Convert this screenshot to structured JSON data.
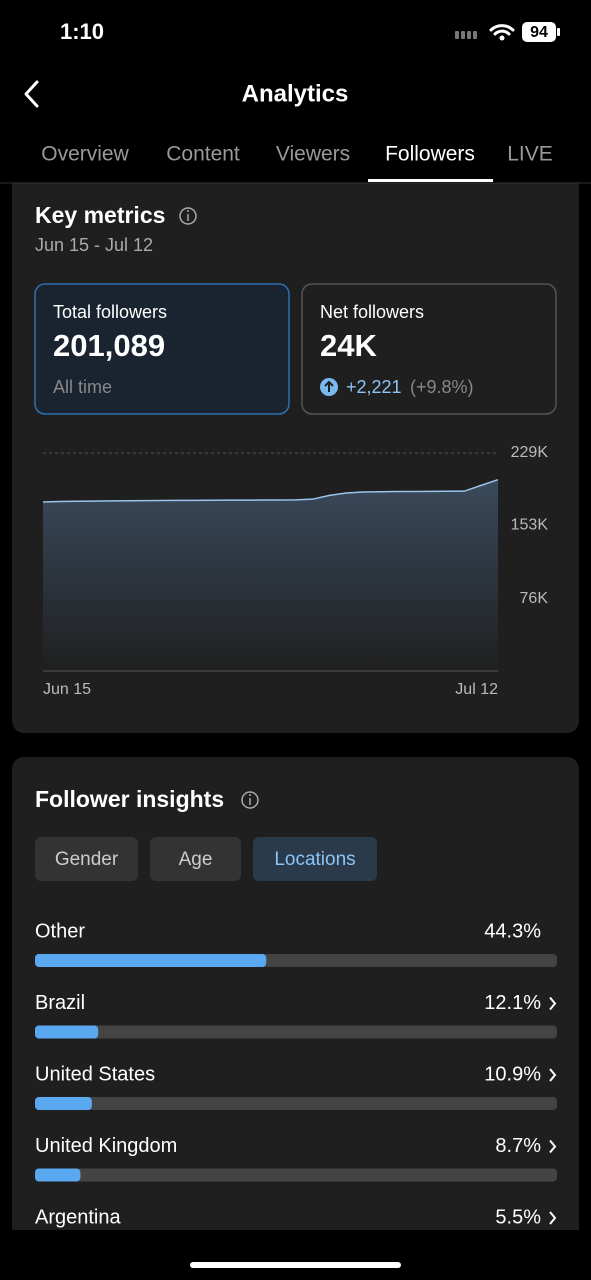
{
  "status_bar": {
    "time": "1:10",
    "battery": "94"
  },
  "header": {
    "title": "Analytics"
  },
  "tabs": {
    "items": [
      "Overview",
      "Content",
      "Viewers",
      "Followers",
      "LIVE"
    ],
    "active": 3
  },
  "key_metrics": {
    "title": "Key metrics",
    "date_range": "Jun 15 - Jul 12",
    "total": {
      "label": "Total followers",
      "value": "201,089",
      "note": "All time"
    },
    "net": {
      "label": "Net followers",
      "value": "24K",
      "change": "+2,221",
      "change_pct": "(+9.8%)"
    }
  },
  "follower_insights": {
    "title": "Follower insights",
    "filters": {
      "items": [
        "Gender",
        "Age",
        "Locations"
      ],
      "active": 2
    }
  },
  "chart_data": [
    {
      "type": "area",
      "x": [
        "Jun 15",
        null,
        null,
        null,
        null,
        null,
        null,
        null,
        null,
        null,
        null,
        null,
        null,
        null,
        null,
        null,
        null,
        null,
        null,
        null,
        null,
        null,
        null,
        null,
        null,
        null,
        null,
        "Jul 12"
      ],
      "values": [
        177500,
        178000,
        178300,
        178500,
        178700,
        178900,
        179000,
        179100,
        179200,
        179300,
        179400,
        179500,
        179500,
        179600,
        179600,
        179700,
        180500,
        184500,
        187000,
        188000,
        188300,
        188500,
        188600,
        188700,
        188800,
        188900,
        195000,
        201000
      ],
      "color": "#9cc3ea",
      "ylim": [
        0,
        229000
      ],
      "yticks": [
        {
          "value": 76000,
          "label": "76K"
        },
        {
          "value": 153000,
          "label": "153K"
        },
        {
          "value": 229000,
          "label": "229K"
        }
      ],
      "grid": true
    },
    {
      "type": "bar",
      "categories": [
        "Other",
        "Brazil",
        "United States",
        "United Kingdom",
        "Argentina"
      ],
      "values": [
        44.3,
        12.1,
        10.9,
        8.7,
        5.5
      ],
      "value_labels": [
        "44.3%",
        "12.1%",
        "10.9%",
        "8.7%",
        "5.5%"
      ],
      "color": "#5aa8f0",
      "xlim": [
        0,
        100
      ]
    }
  ]
}
